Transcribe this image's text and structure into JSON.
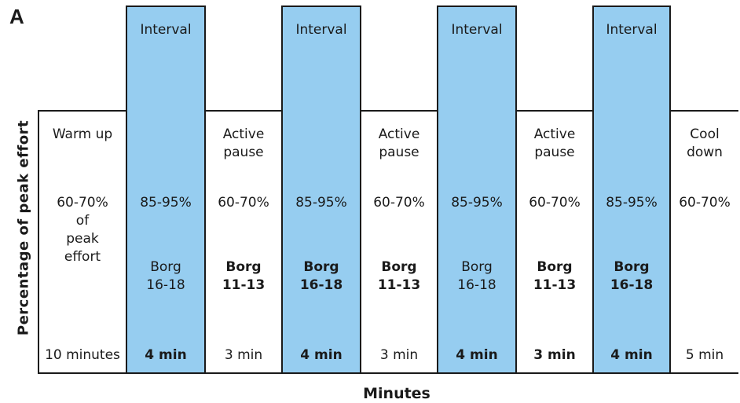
{
  "panel_label": "A",
  "y_axis_label": "Percentage of peak effort",
  "x_axis_label": "Minutes",
  "segments": [
    {
      "type": "rest",
      "top": "Warm up",
      "intensity": "60-70%\nof\npeak\neffort",
      "borg": "",
      "duration": "10 minutes",
      "borg_bold": false,
      "dur_bold": false
    },
    {
      "type": "interval",
      "header": "Interval",
      "top": "",
      "intensity": "85-95%",
      "borg": "Borg\n16-18",
      "duration": "4 min",
      "borg_bold": false,
      "dur_bold": true
    },
    {
      "type": "rest",
      "top": "Active\npause",
      "intensity": "60-70%",
      "borg": "Borg\n11-13",
      "duration": "3 min",
      "borg_bold": true,
      "dur_bold": false
    },
    {
      "type": "interval",
      "header": "Interval",
      "top": "",
      "intensity": "85-95%",
      "borg": "Borg\n16-18",
      "duration": "4 min",
      "borg_bold": true,
      "dur_bold": true
    },
    {
      "type": "rest",
      "top": "Active\npause",
      "intensity": "60-70%",
      "borg": "Borg\n11-13",
      "duration": "3 min",
      "borg_bold": true,
      "dur_bold": false
    },
    {
      "type": "interval",
      "header": "Interval",
      "top": "",
      "intensity": "85-95%",
      "borg": "Borg\n16-18",
      "duration": "4 min",
      "borg_bold": false,
      "dur_bold": true
    },
    {
      "type": "rest",
      "top": "Active\npause",
      "intensity": "60-70%",
      "borg": "Borg\n11-13",
      "duration": "3 min",
      "borg_bold": true,
      "dur_bold": true
    },
    {
      "type": "interval",
      "header": "Interval",
      "top": "",
      "intensity": "85-95%",
      "borg": "Borg\n16-18",
      "duration": "4 min",
      "borg_bold": true,
      "dur_bold": true
    },
    {
      "type": "rest",
      "top": "Cool\ndown",
      "intensity": "60-70%",
      "borg": "",
      "duration": "5 min",
      "borg_bold": false,
      "dur_bold": false
    }
  ],
  "colors": {
    "interval_fill": "#96cdf0",
    "rest_fill": "#ffffff",
    "stroke": "#1a1a1a"
  }
}
